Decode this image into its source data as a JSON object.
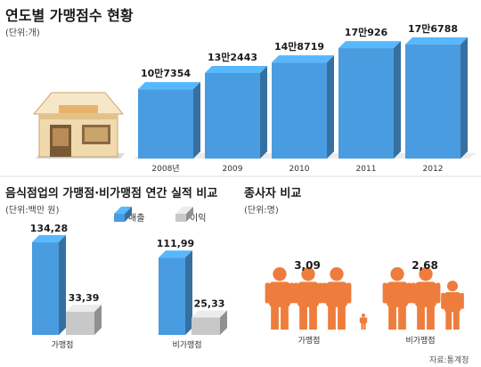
{
  "colors": {
    "bar_blue": "#4a9ce0",
    "bar_gray": "#c8c8c8",
    "person_orange": "#ee7d3d",
    "text_dark": "#1a1a1a"
  },
  "source": "자료:통계청",
  "chart_data": [
    {
      "type": "bar",
      "title": "연도별 가맹점수 현황",
      "unit": "(단위:개)",
      "categories": [
        "2008년",
        "2009",
        "2010",
        "2011",
        "2012"
      ],
      "values": [
        107354,
        132443,
        148719,
        170926,
        176788
      ],
      "value_labels": [
        "10만7354",
        "13만2443",
        "14만8719",
        "17만926",
        "17만6788"
      ],
      "icon": "store-icon"
    },
    {
      "type": "bar",
      "title": "음식점업의 가맹점·비가맹점 연간 실적 비교",
      "unit": "(단위:백만 원)",
      "categories": [
        "가맹점",
        "비가맹점"
      ],
      "series": [
        {
          "name": "매출",
          "values": [
            134.28,
            111.99
          ],
          "labels": [
            "134,28",
            "111,99"
          ]
        },
        {
          "name": "이익",
          "values": [
            33.39,
            25.33
          ],
          "labels": [
            "33,39",
            "25,33"
          ]
        }
      ]
    },
    {
      "type": "bar",
      "title": "종사자 비교",
      "unit": "(단위:명)",
      "categories": [
        "가맹점",
        "비가맹점"
      ],
      "values": [
        3.09,
        2.68
      ],
      "value_labels": [
        "3,09",
        "2,68"
      ],
      "icon": "person-icon"
    }
  ]
}
